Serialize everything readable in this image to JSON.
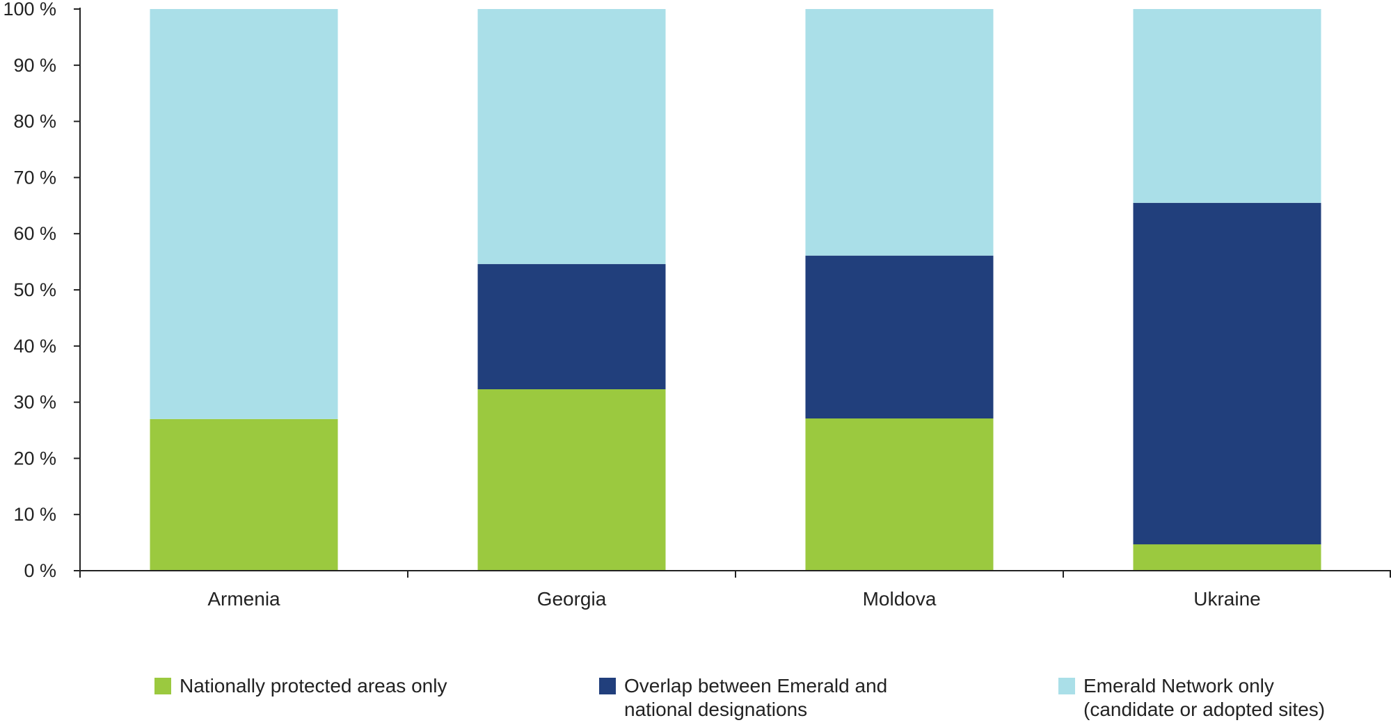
{
  "chart_data": {
    "type": "bar",
    "stacked": true,
    "categories": [
      "Armenia",
      "Georgia",
      "Moldova",
      "Ukraine"
    ],
    "series": [
      {
        "name": "Nationally protected areas only",
        "color": "#9bc93f",
        "values": [
          27,
          32.3,
          27.1,
          4.7
        ]
      },
      {
        "name": "Overlap between Emerald and national designations",
        "color": "#213f7c",
        "values": [
          0,
          22.3,
          29,
          60.8
        ]
      },
      {
        "name": "Emerald Network only (candidate or adopted sites)",
        "color": "#aadfe8",
        "values": [
          73,
          45.4,
          43.9,
          34.5
        ]
      }
    ],
    "ylim": [
      0,
      100
    ],
    "yticks": [
      0,
      10,
      20,
      30,
      40,
      50,
      60,
      70,
      80,
      90,
      100
    ],
    "ytick_labels": [
      "0 %",
      "10 %",
      "20 %",
      "30 %",
      "40 %",
      "50 %",
      "60 %",
      "70 %",
      "80 %",
      "90 %",
      "100 %"
    ],
    "title": "",
    "xlabel": "",
    "ylabel": "",
    "grid": false,
    "legend_position": "bottom"
  },
  "legend": {
    "items": [
      {
        "lines": [
          "Nationally protected areas only"
        ],
        "color": "#9bc93f"
      },
      {
        "lines": [
          "Overlap between Emerald and",
          "national designations"
        ],
        "color": "#213f7c"
      },
      {
        "lines": [
          "Emerald Network only",
          "(candidate or adopted sites)"
        ],
        "color": "#aadfe8"
      }
    ]
  }
}
